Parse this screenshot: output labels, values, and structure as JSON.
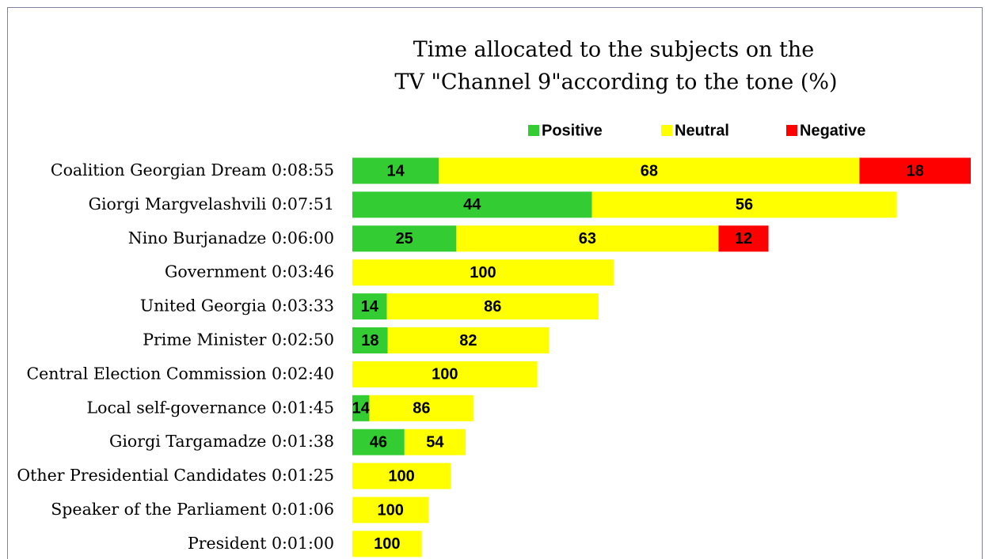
{
  "chart_data": {
    "type": "stacked-bar-horizontal",
    "title": [
      "Time allocated to the subjects on the",
      "TV \"Channel 9\"according to the tone (%)"
    ],
    "categories": [
      "Coalition Georgian Dream",
      "Giorgi Margvelashvili",
      "Nino Burjanadze",
      "Government",
      "United Georgia",
      "Prime Minister",
      "Central Election Commission",
      "Local self-governance",
      "Giorgi Targamadze",
      "Other Presidential Candidates",
      "Speaker of the Parliament",
      "President"
    ],
    "times": [
      "0:08:55",
      "0:07:51",
      "0:06:00",
      "0:03:46",
      "0:03:33",
      "0:02:50",
      "0:02:40",
      "0:01:45",
      "0:01:38",
      "0:01:25",
      "0:01:06",
      "0:01:00"
    ],
    "series": [
      {
        "name": "Positive",
        "color": "#33cc33",
        "values": [
          14,
          44,
          25,
          null,
          14,
          18,
          null,
          14,
          46,
          null,
          null,
          null
        ]
      },
      {
        "name": "Neutral",
        "color": "#ffff00",
        "values": [
          68,
          56,
          63,
          100,
          86,
          82,
          100,
          86,
          54,
          100,
          100,
          100
        ]
      },
      {
        "name": "Negative",
        "color": "#ff0000",
        "values": [
          18,
          null,
          12,
          null,
          null,
          null,
          null,
          null,
          null,
          null,
          null,
          null
        ]
      }
    ],
    "legend": "top"
  }
}
